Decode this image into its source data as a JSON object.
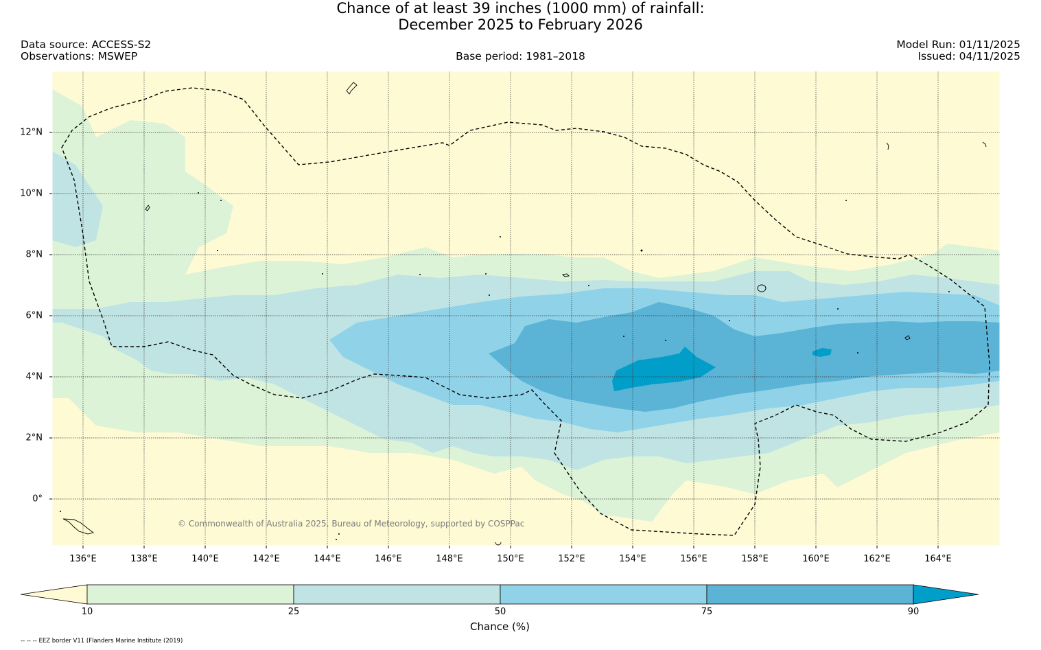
{
  "title": {
    "line1": "Chance of at least 39 inches (1000  mm) of rainfall:",
    "line2": "December 2025 to February 2026"
  },
  "meta": {
    "data_source": "Data source: ACCESS-S2",
    "observations": "Observations: MSWEP",
    "base_period": "Base period: 1981–2018",
    "model_run": "Model Run: 01/11/2025",
    "issued": "Issued: 04/11/2025"
  },
  "map": {
    "lat_labels": [
      "12°N",
      "10°N",
      "8°N",
      "6°N",
      "4°N",
      "2°N",
      "0°"
    ],
    "lon_labels": [
      "136°E",
      "138°E",
      "140°E",
      "142°E",
      "144°E",
      "146°E",
      "148°E",
      "150°E",
      "152°E",
      "154°E",
      "156°E",
      "158°E",
      "160°E",
      "162°E",
      "164°E"
    ],
    "copyright": "© Commonwealth of Australia 2025, Bureau of Meteorology, supported by COSPPac"
  },
  "colorbar": {
    "ticks": [
      "10",
      "25",
      "50",
      "75",
      "90"
    ],
    "label": "Chance (%)",
    "colors": {
      "below_10": "#fefad4",
      "c10_25": "#dcf3d8",
      "c25_50": "#c0e4e3",
      "c50_75": "#90d3e9",
      "c75_90": "#5bb3d6",
      "above_90": "#009ec8"
    }
  },
  "footnote": "-- -- -- EEZ border V11 (Flanders Marine Institute (2019)"
}
